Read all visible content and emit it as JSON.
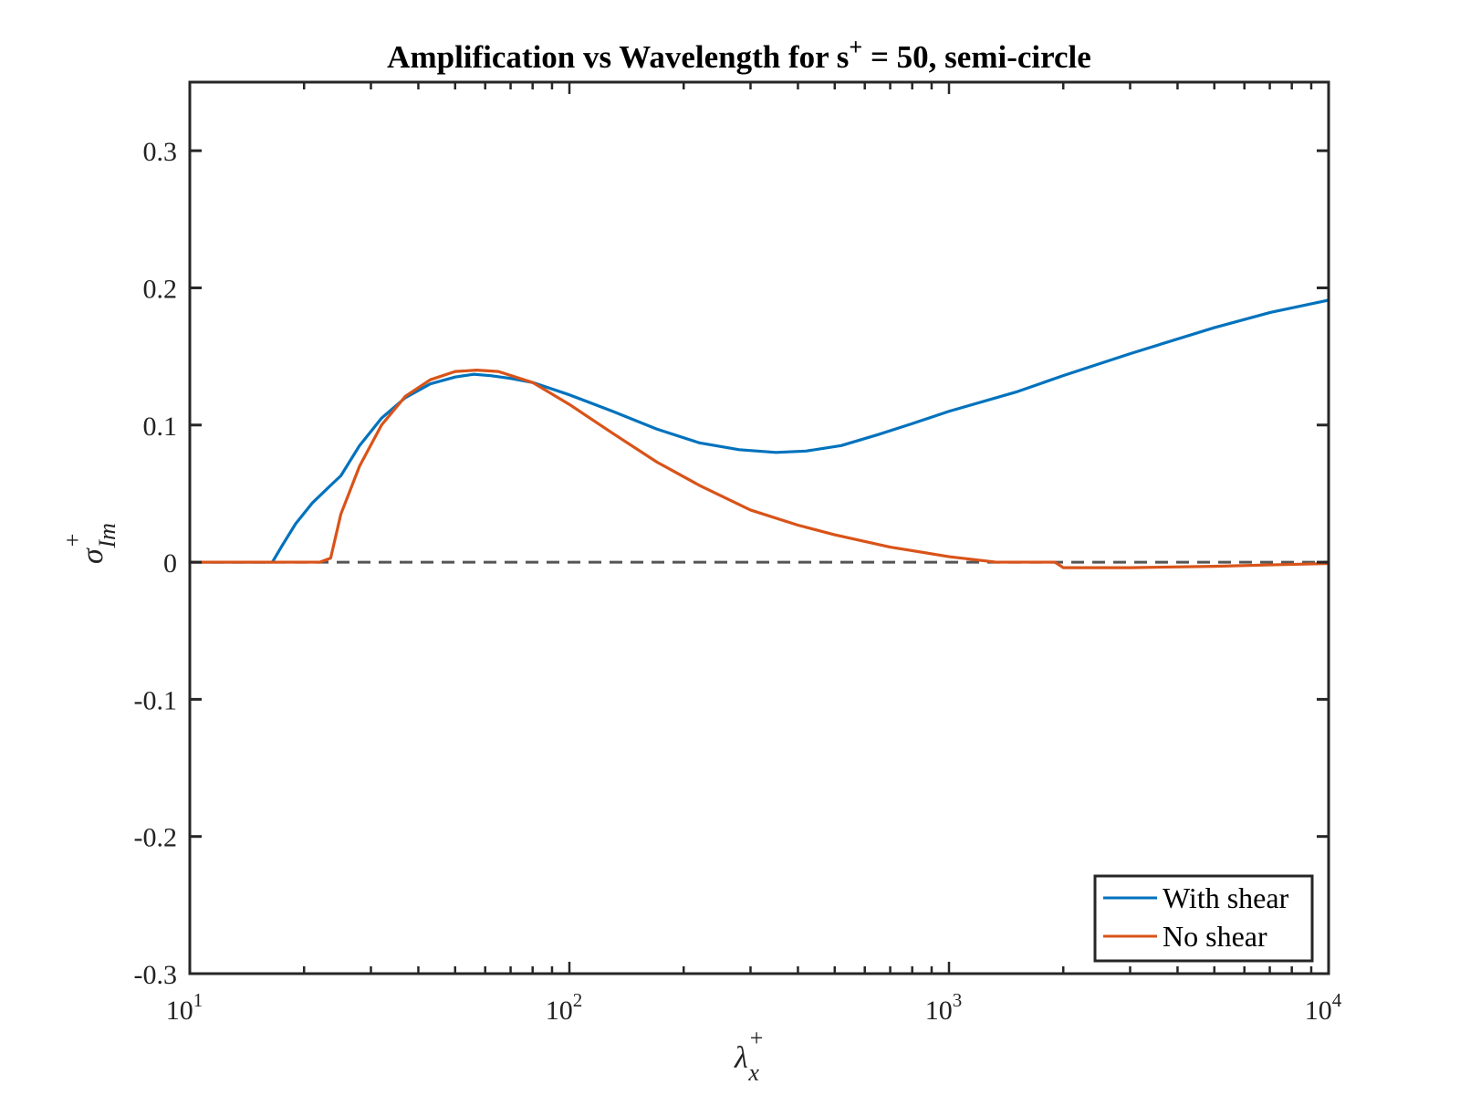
{
  "chart_data": {
    "type": "line",
    "title": {
      "prefix": "Amplification vs Wavelength for s",
      "sup": "+",
      "suffix": " = 50, semi-circle"
    },
    "xlabel": {
      "base": "λ",
      "sup": "+",
      "sub": "x"
    },
    "ylabel": {
      "base": "σ",
      "sup": "+",
      "sub": "Im"
    },
    "x_scale": "log",
    "xlim": [
      10,
      10000
    ],
    "ylim": [
      -0.3,
      0.35
    ],
    "x_ticks": [
      {
        "value": 10,
        "base": "10",
        "exp": "1"
      },
      {
        "value": 100,
        "base": "10",
        "exp": "2"
      },
      {
        "value": 1000,
        "base": "10",
        "exp": "3"
      },
      {
        "value": 10000,
        "base": "10",
        "exp": "4"
      }
    ],
    "y_ticks": [
      {
        "value": 0.3,
        "label": "0.3"
      },
      {
        "value": 0.2,
        "label": "0.2"
      },
      {
        "value": 0.1,
        "label": "0.1"
      },
      {
        "value": 0,
        "label": "0"
      },
      {
        "value": -0.1,
        "label": "-0.1"
      },
      {
        "value": -0.2,
        "label": "-0.2"
      },
      {
        "value": -0.3,
        "label": "-0.3"
      }
    ],
    "reference_line": {
      "y": 0,
      "style": "dashed",
      "color": "#555555"
    },
    "grid": false,
    "legend_position": "bottom-right",
    "series": [
      {
        "name": "With shear",
        "color": "#0072BD",
        "x": [
          10,
          16.5,
          17.5,
          19,
          21,
          23.5,
          25,
          28,
          32,
          37,
          43,
          50,
          56,
          62,
          70,
          80,
          100,
          130,
          170,
          220,
          280,
          350,
          420,
          520,
          650,
          800,
          1000,
          1500,
          2000,
          3000,
          5000,
          7000,
          10000
        ],
        "y": [
          0,
          0,
          0.012,
          0.028,
          0.043,
          0.056,
          0.063,
          0.085,
          0.105,
          0.12,
          0.13,
          0.135,
          0.137,
          0.136,
          0.134,
          0.131,
          0.122,
          0.11,
          0.097,
          0.087,
          0.082,
          0.08,
          0.081,
          0.085,
          0.093,
          0.101,
          0.11,
          0.124,
          0.136,
          0.152,
          0.171,
          0.182,
          0.191
        ]
      },
      {
        "name": "No shear",
        "color": "#D95319",
        "x": [
          10,
          22,
          23.5,
          25,
          28,
          32,
          37,
          43,
          50,
          57,
          65,
          80,
          100,
          130,
          170,
          220,
          300,
          400,
          500,
          700,
          1000,
          1330,
          1900,
          2000,
          3000,
          5000,
          7000,
          10000
        ],
        "y": [
          0,
          0,
          0.003,
          0.035,
          0.07,
          0.1,
          0.121,
          0.133,
          0.139,
          0.14,
          0.139,
          0.131,
          0.115,
          0.094,
          0.073,
          0.056,
          0.038,
          0.027,
          0.02,
          0.011,
          0.004,
          0,
          0,
          -0.004,
          -0.004,
          -0.003,
          -0.002,
          -0.001
        ]
      }
    ]
  }
}
